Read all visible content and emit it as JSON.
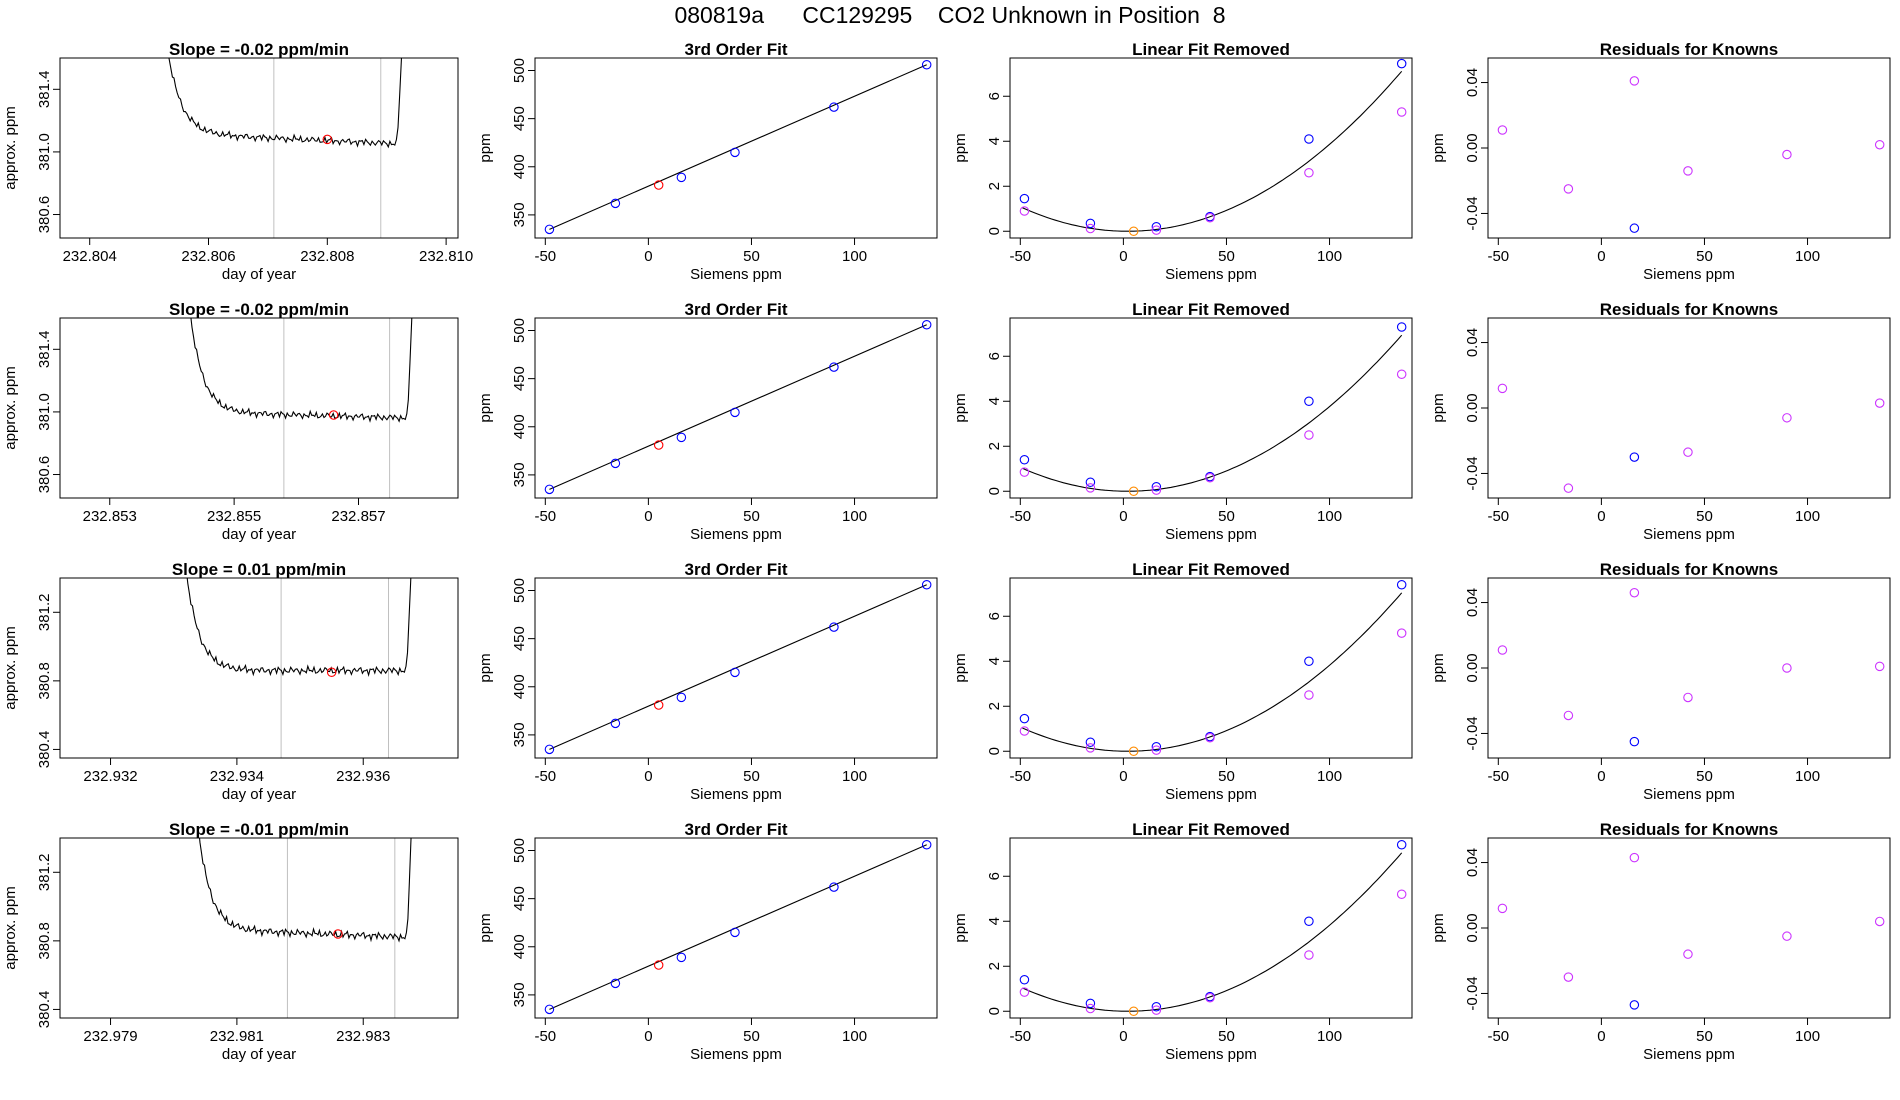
{
  "page_title": "080819a      CC129295    CO2 Unknown in Position  8",
  "colors": {
    "known": "#0000ff",
    "unknown": "#ff0000",
    "unknown_fit": "#ff8c00",
    "resid": "#cc33ff",
    "guide": "#c0c0c0",
    "line": "#000000"
  },
  "chart_data": [
    {
      "type": "line",
      "row": 1,
      "col": 1,
      "title": "Slope =  -0.02  ppm/min",
      "xlabel": "day of year",
      "ylabel": "approx. ppm",
      "xlim": [
        232.8035,
        232.8102
      ],
      "ylim": [
        380.45,
        381.6
      ],
      "xticks": [
        "232.804",
        "232.806",
        "232.808",
        "232.810"
      ],
      "yticks": [
        "380.6",
        "381.0",
        "381.4"
      ],
      "vlines": [
        232.8071,
        232.8089
      ],
      "trace": {
        "x_range": [
          232.8052,
          232.8093
        ],
        "baseline_start": 381.12,
        "baseline_end": 381.05
      },
      "marker": {
        "x": 232.808,
        "y": 381.08
      }
    },
    {
      "type": "line",
      "row": 2,
      "col": 1,
      "title": "Slope =  -0.02  ppm/min",
      "xlabel": "day of year",
      "ylabel": "approx. ppm",
      "xlim": [
        232.8522,
        232.8586
      ],
      "ylim": [
        380.45,
        381.6
      ],
      "xticks": [
        "232.853",
        "232.855",
        "232.857"
      ],
      "yticks": [
        "380.6",
        "381.0",
        "381.4"
      ],
      "vlines": [
        232.8558,
        232.8575
      ],
      "trace": {
        "x_range": [
          232.8542,
          232.8579
        ],
        "baseline_start": 381.0,
        "baseline_end": 380.96
      },
      "marker": {
        "x": 232.8566,
        "y": 380.98
      }
    },
    {
      "type": "line",
      "row": 3,
      "col": 1,
      "title": "Slope =  0.01  ppm/min",
      "xlabel": "day of year",
      "ylabel": "approx. ppm",
      "xlim": [
        232.9312,
        232.9375
      ],
      "ylim": [
        380.35,
        381.4
      ],
      "xticks": [
        "232.932",
        "232.934",
        "232.936"
      ],
      "yticks": [
        "380.4",
        "380.8",
        "381.2"
      ],
      "vlines": [
        232.9347,
        232.9364
      ],
      "trace": {
        "x_range": [
          232.9331,
          232.9368
        ],
        "baseline_start": 380.86,
        "baseline_end": 380.86
      },
      "marker": {
        "x": 232.9355,
        "y": 380.85
      }
    },
    {
      "type": "line",
      "row": 4,
      "col": 1,
      "title": "Slope =  -0.01  ppm/min",
      "xlabel": "day of year",
      "ylabel": "approx. ppm",
      "xlim": [
        232.9782,
        232.9845
      ],
      "ylim": [
        380.35,
        381.4
      ],
      "xticks": [
        "232.979",
        "232.981",
        "232.983"
      ],
      "yticks": [
        "380.4",
        "380.8",
        "381.2"
      ],
      "vlines": [
        232.9818,
        232.9835
      ],
      "trace": {
        "x_range": [
          232.9803,
          232.9838
        ],
        "baseline_start": 380.87,
        "baseline_end": 380.82
      },
      "marker": {
        "x": 232.9826,
        "y": 380.84
      }
    },
    {
      "type": "scatter",
      "row": 1,
      "col": 2,
      "title": "3rd Order Fit",
      "xlabel": "Siemens ppm",
      "ylabel": "ppm",
      "xlim": [
        -55,
        140
      ],
      "ylim": [
        326,
        513
      ],
      "xticks": [
        "-50",
        "0",
        "50",
        "100"
      ],
      "yticks": [
        "350",
        "400",
        "450",
        "500"
      ],
      "knowns": {
        "x": [
          -48,
          -16,
          16,
          42,
          90,
          135
        ],
        "y": [
          335,
          362,
          389,
          415,
          462,
          506
        ]
      },
      "unknown": {
        "x": 5,
        "y": 381
      }
    },
    {
      "type": "scatter",
      "row": 2,
      "col": 2,
      "title": "3rd Order Fit",
      "xlabel": "Siemens ppm",
      "ylabel": "ppm",
      "xlim": [
        -55,
        140
      ],
      "ylim": [
        326,
        513
      ],
      "xticks": [
        "-50",
        "0",
        "50",
        "100"
      ],
      "yticks": [
        "350",
        "400",
        "450",
        "500"
      ],
      "knowns": {
        "x": [
          -48,
          -16,
          16,
          42,
          90,
          135
        ],
        "y": [
          335,
          362,
          389,
          415,
          462,
          506
        ]
      },
      "unknown": {
        "x": 5,
        "y": 381
      }
    },
    {
      "type": "scatter",
      "row": 3,
      "col": 2,
      "title": "3rd Order Fit",
      "xlabel": "Siemens ppm",
      "ylabel": "ppm",
      "xlim": [
        -55,
        140
      ],
      "ylim": [
        326,
        513
      ],
      "xticks": [
        "-50",
        "0",
        "50",
        "100"
      ],
      "yticks": [
        "350",
        "400",
        "450",
        "500"
      ],
      "knowns": {
        "x": [
          -48,
          -16,
          16,
          42,
          90,
          135
        ],
        "y": [
          335,
          362,
          389,
          415,
          462,
          506
        ]
      },
      "unknown": {
        "x": 5,
        "y": 381
      }
    },
    {
      "type": "scatter",
      "row": 4,
      "col": 2,
      "title": "3rd Order Fit",
      "xlabel": "Siemens ppm",
      "ylabel": "ppm",
      "xlim": [
        -55,
        140
      ],
      "ylim": [
        326,
        513
      ],
      "xticks": [
        "-50",
        "0",
        "50",
        "100"
      ],
      "yticks": [
        "350",
        "400",
        "450",
        "500"
      ],
      "knowns": {
        "x": [
          -48,
          -16,
          16,
          42,
          90,
          135
        ],
        "y": [
          335,
          362,
          389,
          415,
          462,
          506
        ]
      },
      "unknown": {
        "x": 5,
        "y": 381
      }
    },
    {
      "type": "scatter",
      "row": 1,
      "col": 3,
      "title": "Linear Fit Removed",
      "xlabel": "Siemens ppm",
      "ylabel": "ppm",
      "xlim": [
        -55,
        140
      ],
      "ylim": [
        -0.3,
        7.7
      ],
      "xticks": [
        "-50",
        "0",
        "50",
        "100"
      ],
      "yticks": [
        "0",
        "2",
        "4",
        "6"
      ],
      "curve": {
        "vertex_x": 2,
        "a": 0.000402
      },
      "knowns": {
        "x": [
          -48,
          -16,
          16,
          42,
          90,
          135
        ],
        "y": [
          1.45,
          0.35,
          0.2,
          0.65,
          4.1,
          7.45
        ]
      },
      "linear": {
        "x": [
          -48,
          -16,
          16,
          42,
          90,
          135
        ],
        "y": [
          0.9,
          0.12,
          0.05,
          0.6,
          2.6,
          5.3
        ]
      },
      "unknown": {
        "x": 5,
        "y": 0.0
      }
    },
    {
      "type": "scatter",
      "row": 2,
      "col": 3,
      "title": "Linear Fit Removed",
      "xlabel": "Siemens ppm",
      "ylabel": "ppm",
      "xlim": [
        -55,
        140
      ],
      "ylim": [
        -0.3,
        7.7
      ],
      "xticks": [
        "-50",
        "0",
        "50",
        "100"
      ],
      "yticks": [
        "0",
        "2",
        "4",
        "6"
      ],
      "curve": {
        "vertex_x": 2,
        "a": 0.000392
      },
      "knowns": {
        "x": [
          -48,
          -16,
          16,
          42,
          90,
          135
        ],
        "y": [
          1.4,
          0.4,
          0.2,
          0.65,
          4.0,
          7.3
        ]
      },
      "linear": {
        "x": [
          -48,
          -16,
          16,
          42,
          90,
          135
        ],
        "y": [
          0.85,
          0.15,
          0.05,
          0.6,
          2.5,
          5.2
        ]
      },
      "unknown": {
        "x": 5,
        "y": 0.0
      }
    },
    {
      "type": "scatter",
      "row": 3,
      "col": 3,
      "title": "Linear Fit Removed",
      "xlabel": "Siemens ppm",
      "ylabel": "ppm",
      "xlim": [
        -55,
        140
      ],
      "ylim": [
        -0.3,
        7.7
      ],
      "xticks": [
        "-50",
        "0",
        "50",
        "100"
      ],
      "yticks": [
        "0",
        "2",
        "4",
        "6"
      ],
      "curve": {
        "vertex_x": 2,
        "a": 0.000398
      },
      "knowns": {
        "x": [
          -48,
          -16,
          16,
          42,
          90,
          135
        ],
        "y": [
          1.45,
          0.4,
          0.2,
          0.65,
          4.0,
          7.4
        ]
      },
      "linear": {
        "x": [
          -48,
          -16,
          16,
          42,
          90,
          135
        ],
        "y": [
          0.9,
          0.15,
          0.05,
          0.6,
          2.5,
          5.25
        ]
      },
      "unknown": {
        "x": 5,
        "y": 0.0
      }
    },
    {
      "type": "scatter",
      "row": 4,
      "col": 3,
      "title": "Linear Fit Removed",
      "xlabel": "Siemens ppm",
      "ylabel": "ppm",
      "xlim": [
        -55,
        140
      ],
      "ylim": [
        -0.3,
        7.7
      ],
      "xticks": [
        "-50",
        "0",
        "50",
        "100"
      ],
      "yticks": [
        "0",
        "2",
        "4",
        "6"
      ],
      "curve": {
        "vertex_x": 2,
        "a": 0.000398
      },
      "knowns": {
        "x": [
          -48,
          -16,
          16,
          42,
          90,
          135
        ],
        "y": [
          1.4,
          0.35,
          0.2,
          0.65,
          4.0,
          7.4
        ]
      },
      "linear": {
        "x": [
          -48,
          -16,
          16,
          42,
          90,
          135
        ],
        "y": [
          0.85,
          0.12,
          0.05,
          0.6,
          2.5,
          5.2
        ]
      },
      "unknown": {
        "x": 5,
        "y": 0.0
      }
    },
    {
      "type": "scatter",
      "row": 1,
      "col": 4,
      "title": "Residuals for Knowns",
      "xlabel": "Siemens ppm",
      "ylabel": "ppm",
      "xlim": [
        -55,
        140
      ],
      "ylim": [
        -0.055,
        0.055
      ],
      "xticks": [
        "-50",
        "0",
        "50",
        "100"
      ],
      "yticks": [
        "-0.04",
        "0.00",
        "0.04"
      ],
      "resid": {
        "x": [
          -48,
          -16,
          16,
          42,
          90,
          135
        ],
        "y": [
          0.011,
          -0.025,
          0.041,
          -0.014,
          -0.004,
          0.002
        ]
      },
      "known_resid": {
        "x": 16,
        "y": -0.049
      }
    },
    {
      "type": "scatter",
      "row": 2,
      "col": 4,
      "title": "Residuals for Knowns",
      "xlabel": "Siemens ppm",
      "ylabel": "ppm",
      "xlim": [
        -55,
        140
      ],
      "ylim": [
        -0.055,
        0.055
      ],
      "xticks": [
        "-50",
        "0",
        "50",
        "100"
      ],
      "yticks": [
        "-0.04",
        "0.00",
        "0.04"
      ],
      "resid": {
        "x": [
          -48,
          -16,
          42,
          90,
          135
        ],
        "y": [
          0.012,
          -0.049,
          -0.027,
          -0.006,
          0.003
        ]
      },
      "known_resid": {
        "x": 16,
        "y": -0.03
      }
    },
    {
      "type": "scatter",
      "row": 3,
      "col": 4,
      "title": "Residuals for Knowns",
      "xlabel": "Siemens ppm",
      "ylabel": "ppm",
      "xlim": [
        -55,
        140
      ],
      "ylim": [
        -0.055,
        0.055
      ],
      "xticks": [
        "-50",
        "0",
        "50",
        "100"
      ],
      "yticks": [
        "-0.04",
        "0.00",
        "0.04"
      ],
      "resid": {
        "x": [
          -48,
          -16,
          16,
          42,
          90,
          135
        ],
        "y": [
          0.011,
          -0.029,
          0.046,
          -0.018,
          0.0,
          0.001
        ]
      },
      "known_resid": {
        "x": 16,
        "y": -0.045
      }
    },
    {
      "type": "scatter",
      "row": 4,
      "col": 4,
      "title": "Residuals for Knowns",
      "xlabel": "Siemens ppm",
      "ylabel": "ppm",
      "xlim": [
        -55,
        140
      ],
      "ylim": [
        -0.055,
        0.055
      ],
      "xticks": [
        "-50",
        "0",
        "50",
        "100"
      ],
      "yticks": [
        "-0.04",
        "0.00",
        "0.04"
      ],
      "resid": {
        "x": [
          -48,
          -16,
          16,
          42,
          90,
          135
        ],
        "y": [
          0.012,
          -0.03,
          0.043,
          -0.016,
          -0.005,
          0.004
        ]
      },
      "known_resid": {
        "x": 16,
        "y": -0.047
      }
    }
  ]
}
